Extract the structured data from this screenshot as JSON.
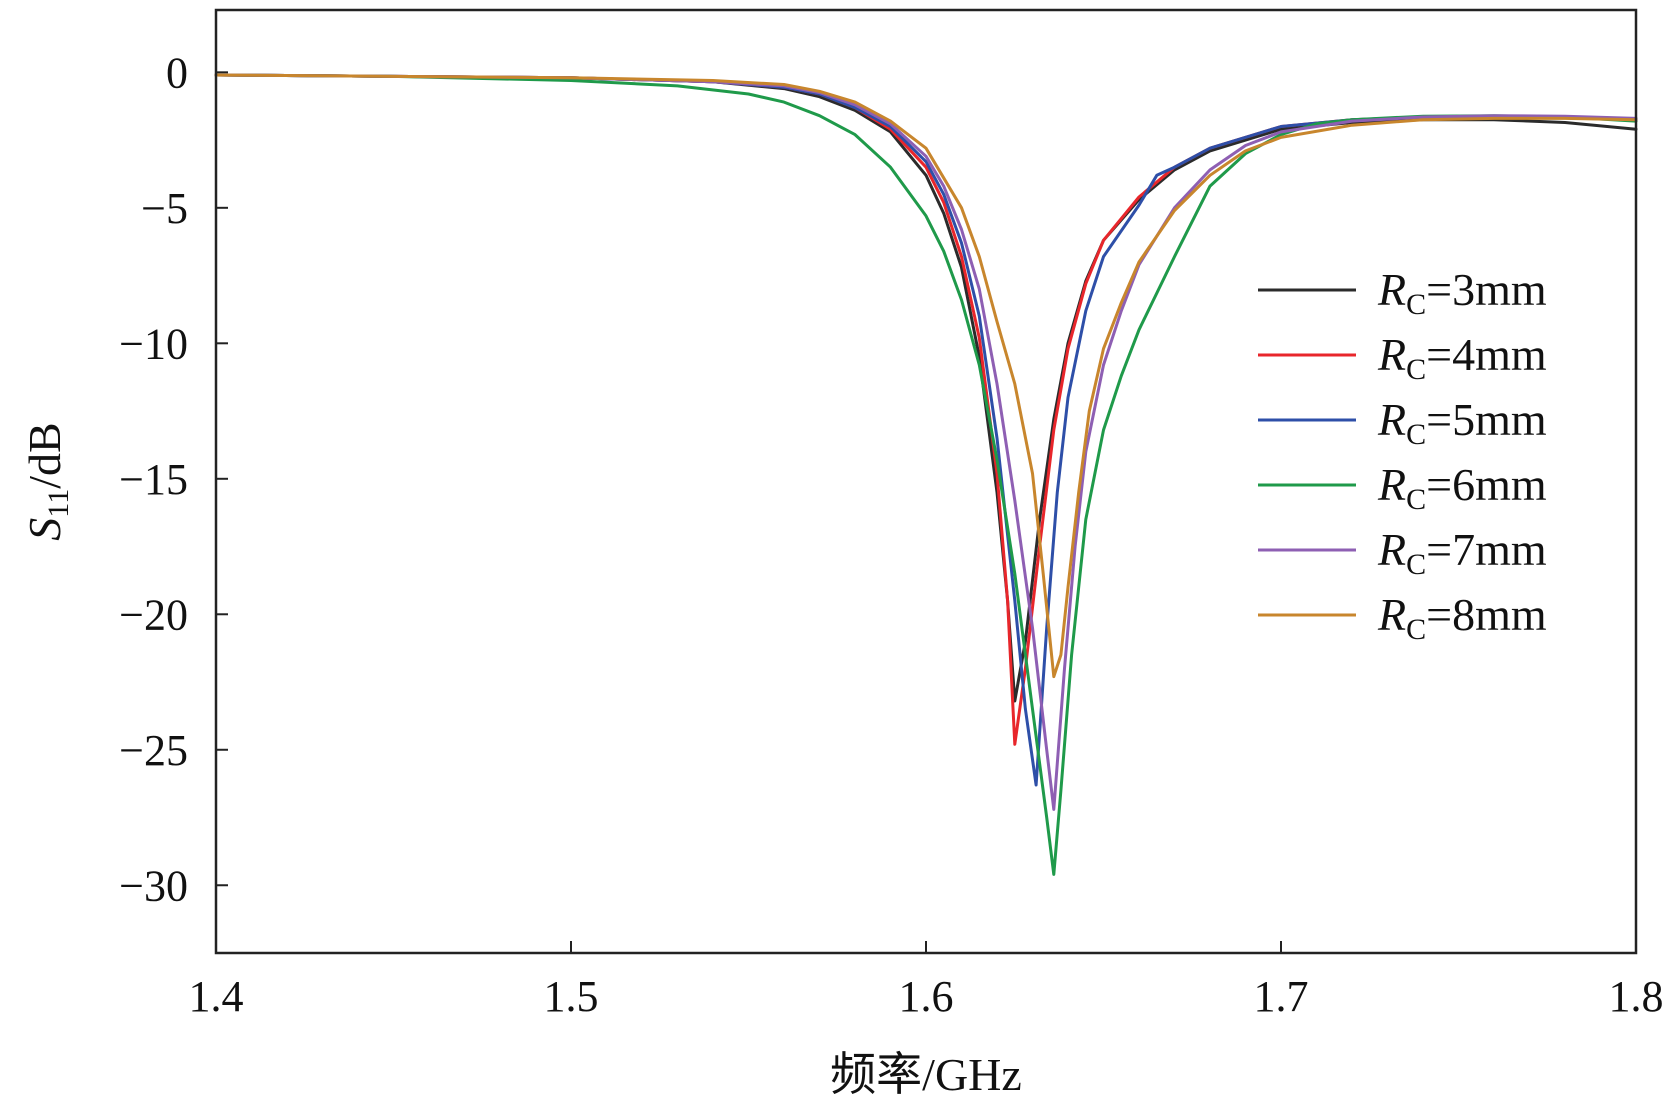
{
  "chart_data": {
    "type": "line",
    "xlabel": "频率/GHz",
    "ylabel": {
      "var": "S",
      "sub": "11",
      "rest": "/dB"
    },
    "xlim": [
      1.4,
      1.8
    ],
    "ylim": [
      -32.5,
      2.3
    ],
    "xticks": [
      1.4,
      1.5,
      1.6,
      1.7,
      1.8
    ],
    "xtick_labels": [
      "1.4",
      "1.5",
      "1.6",
      "1.7",
      "1.8"
    ],
    "yticks": [
      0,
      -5,
      -10,
      -15,
      -20,
      -25,
      -30
    ],
    "ytick_labels": [
      "0",
      "−5",
      "−10",
      "−15",
      "−20",
      "−25",
      "−30"
    ],
    "grid": false,
    "legend_position": "right",
    "legend_var": "R",
    "legend_sub": "C",
    "series": [
      {
        "name": "=3mm",
        "color": "#2b2b2b",
        "points": [
          [
            1.4,
            -0.1
          ],
          [
            1.45,
            -0.15
          ],
          [
            1.5,
            -0.2
          ],
          [
            1.54,
            -0.35
          ],
          [
            1.56,
            -0.6
          ],
          [
            1.57,
            -0.9
          ],
          [
            1.58,
            -1.4
          ],
          [
            1.59,
            -2.2
          ],
          [
            1.6,
            -3.8
          ],
          [
            1.605,
            -5.2
          ],
          [
            1.61,
            -7.2
          ],
          [
            1.615,
            -10.5
          ],
          [
            1.62,
            -15.5
          ],
          [
            1.623,
            -19.5
          ],
          [
            1.625,
            -23.2
          ],
          [
            1.628,
            -21
          ],
          [
            1.632,
            -16.5
          ],
          [
            1.636,
            -12.8
          ],
          [
            1.64,
            -10
          ],
          [
            1.645,
            -7.7
          ],
          [
            1.65,
            -6.2
          ],
          [
            1.66,
            -4.7
          ],
          [
            1.67,
            -3.6
          ],
          [
            1.68,
            -2.9
          ],
          [
            1.7,
            -2.1
          ],
          [
            1.72,
            -1.85
          ],
          [
            1.74,
            -1.75
          ],
          [
            1.76,
            -1.75
          ],
          [
            1.78,
            -1.85
          ],
          [
            1.8,
            -2.1
          ]
        ]
      },
      {
        "name": "=4mm",
        "color": "#e8262b",
        "points": [
          [
            1.4,
            -0.1
          ],
          [
            1.45,
            -0.15
          ],
          [
            1.5,
            -0.2
          ],
          [
            1.54,
            -0.35
          ],
          [
            1.56,
            -0.55
          ],
          [
            1.57,
            -0.8
          ],
          [
            1.58,
            -1.3
          ],
          [
            1.59,
            -2.1
          ],
          [
            1.6,
            -3.5
          ],
          [
            1.605,
            -4.8
          ],
          [
            1.61,
            -6.8
          ],
          [
            1.615,
            -9.8
          ],
          [
            1.62,
            -14.8
          ],
          [
            1.623,
            -19.5
          ],
          [
            1.625,
            -24.8
          ],
          [
            1.628,
            -22
          ],
          [
            1.632,
            -17.5
          ],
          [
            1.636,
            -13.2
          ],
          [
            1.64,
            -10.2
          ],
          [
            1.645,
            -7.8
          ],
          [
            1.65,
            -6.2
          ],
          [
            1.66,
            -4.6
          ],
          [
            1.67,
            -3.5
          ],
          [
            1.68,
            -2.8
          ],
          [
            1.7,
            -2.0
          ],
          [
            1.72,
            -1.75
          ],
          [
            1.74,
            -1.65
          ],
          [
            1.76,
            -1.62
          ],
          [
            1.78,
            -1.65
          ],
          [
            1.8,
            -1.75
          ]
        ]
      },
      {
        "name": "=5mm",
        "color": "#2e4fa8",
        "points": [
          [
            1.4,
            -0.1
          ],
          [
            1.45,
            -0.15
          ],
          [
            1.5,
            -0.2
          ],
          [
            1.54,
            -0.35
          ],
          [
            1.56,
            -0.55
          ],
          [
            1.57,
            -0.8
          ],
          [
            1.58,
            -1.3
          ],
          [
            1.59,
            -2.0
          ],
          [
            1.6,
            -3.3
          ],
          [
            1.605,
            -4.5
          ],
          [
            1.61,
            -6.3
          ],
          [
            1.615,
            -9.0
          ],
          [
            1.62,
            -13.5
          ],
          [
            1.625,
            -19.5
          ],
          [
            1.628,
            -23.5
          ],
          [
            1.631,
            -26.3
          ],
          [
            1.634,
            -20.5
          ],
          [
            1.637,
            -15.5
          ],
          [
            1.64,
            -12
          ],
          [
            1.645,
            -8.8
          ],
          [
            1.65,
            -6.8
          ],
          [
            1.66,
            -4.9
          ],
          [
            1.665,
            -3.8
          ],
          [
            1.67,
            -3.5
          ],
          [
            1.68,
            -2.8
          ],
          [
            1.7,
            -2.0
          ],
          [
            1.72,
            -1.75
          ],
          [
            1.74,
            -1.65
          ],
          [
            1.76,
            -1.62
          ],
          [
            1.78,
            -1.65
          ],
          [
            1.8,
            -1.75
          ]
        ]
      },
      {
        "name": "=6mm",
        "color": "#1f9a4a",
        "points": [
          [
            1.4,
            -0.1
          ],
          [
            1.45,
            -0.15
          ],
          [
            1.5,
            -0.3
          ],
          [
            1.53,
            -0.5
          ],
          [
            1.55,
            -0.8
          ],
          [
            1.56,
            -1.1
          ],
          [
            1.57,
            -1.6
          ],
          [
            1.58,
            -2.3
          ],
          [
            1.59,
            -3.5
          ],
          [
            1.6,
            -5.3
          ],
          [
            1.605,
            -6.6
          ],
          [
            1.61,
            -8.4
          ],
          [
            1.615,
            -10.8
          ],
          [
            1.62,
            -14.3
          ],
          [
            1.625,
            -18.5
          ],
          [
            1.63,
            -23.5
          ],
          [
            1.634,
            -27.5
          ],
          [
            1.636,
            -29.6
          ],
          [
            1.638,
            -26.5
          ],
          [
            1.641,
            -21.5
          ],
          [
            1.645,
            -16.5
          ],
          [
            1.65,
            -13.2
          ],
          [
            1.655,
            -11.2
          ],
          [
            1.66,
            -9.5
          ],
          [
            1.67,
            -6.8
          ],
          [
            1.68,
            -4.2
          ],
          [
            1.69,
            -3.0
          ],
          [
            1.7,
            -2.3
          ],
          [
            1.71,
            -1.9
          ],
          [
            1.72,
            -1.75
          ],
          [
            1.74,
            -1.62
          ],
          [
            1.76,
            -1.6
          ],
          [
            1.78,
            -1.65
          ],
          [
            1.8,
            -1.8
          ]
        ]
      },
      {
        "name": "=7mm",
        "color": "#8e5fb3",
        "points": [
          [
            1.4,
            -0.1
          ],
          [
            1.45,
            -0.15
          ],
          [
            1.5,
            -0.2
          ],
          [
            1.54,
            -0.35
          ],
          [
            1.56,
            -0.5
          ],
          [
            1.57,
            -0.75
          ],
          [
            1.58,
            -1.2
          ],
          [
            1.59,
            -1.9
          ],
          [
            1.6,
            -3.1
          ],
          [
            1.605,
            -4.2
          ],
          [
            1.61,
            -5.8
          ],
          [
            1.615,
            -8.0
          ],
          [
            1.62,
            -11.5
          ],
          [
            1.625,
            -15.8
          ],
          [
            1.63,
            -20.5
          ],
          [
            1.634,
            -25
          ],
          [
            1.636,
            -27.2
          ],
          [
            1.639,
            -22
          ],
          [
            1.642,
            -17.5
          ],
          [
            1.645,
            -14
          ],
          [
            1.65,
            -10.8
          ],
          [
            1.655,
            -8.8
          ],
          [
            1.66,
            -7.1
          ],
          [
            1.67,
            -5.0
          ],
          [
            1.68,
            -3.6
          ],
          [
            1.69,
            -2.7
          ],
          [
            1.7,
            -2.2
          ],
          [
            1.72,
            -1.8
          ],
          [
            1.74,
            -1.65
          ],
          [
            1.76,
            -1.6
          ],
          [
            1.78,
            -1.62
          ],
          [
            1.8,
            -1.7
          ]
        ]
      },
      {
        "name": "=8mm",
        "color": "#c8862d",
        "points": [
          [
            1.4,
            -0.1
          ],
          [
            1.45,
            -0.15
          ],
          [
            1.5,
            -0.2
          ],
          [
            1.54,
            -0.3
          ],
          [
            1.56,
            -0.45
          ],
          [
            1.57,
            -0.7
          ],
          [
            1.58,
            -1.1
          ],
          [
            1.59,
            -1.8
          ],
          [
            1.6,
            -2.8
          ],
          [
            1.61,
            -5.0
          ],
          [
            1.615,
            -6.8
          ],
          [
            1.62,
            -9.2
          ],
          [
            1.625,
            -11.5
          ],
          [
            1.63,
            -14.8
          ],
          [
            1.633,
            -18.5
          ],
          [
            1.636,
            -22.3
          ],
          [
            1.638,
            -21.5
          ],
          [
            1.64,
            -19
          ],
          [
            1.643,
            -15.5
          ],
          [
            1.646,
            -12.5
          ],
          [
            1.65,
            -10.2
          ],
          [
            1.655,
            -8.5
          ],
          [
            1.66,
            -7.0
          ],
          [
            1.67,
            -5.1
          ],
          [
            1.68,
            -3.8
          ],
          [
            1.69,
            -2.9
          ],
          [
            1.7,
            -2.4
          ],
          [
            1.72,
            -1.95
          ],
          [
            1.74,
            -1.75
          ],
          [
            1.76,
            -1.7
          ],
          [
            1.78,
            -1.7
          ],
          [
            1.8,
            -1.75
          ]
        ]
      }
    ]
  }
}
